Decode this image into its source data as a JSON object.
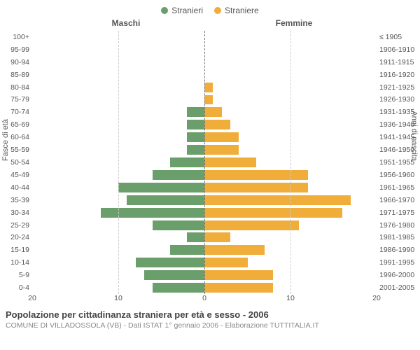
{
  "legend": {
    "male": {
      "label": "Stranieri",
      "color": "#6a9e6a"
    },
    "female": {
      "label": "Straniere",
      "color": "#f0ad3a"
    }
  },
  "headers": {
    "male": "Maschi",
    "female": "Femmine"
  },
  "ylabels": {
    "left": "Fasce di età",
    "right": "Anni di nascita"
  },
  "xaxis": {
    "max": 20,
    "ticks_left": [
      "20",
      "10"
    ],
    "center": "0",
    "ticks_right": [
      "10",
      "20"
    ]
  },
  "rows": [
    {
      "age": "100+",
      "birth": "≤ 1905",
      "m": 0,
      "f": 0
    },
    {
      "age": "95-99",
      "birth": "1906-1910",
      "m": 0,
      "f": 0
    },
    {
      "age": "90-94",
      "birth": "1911-1915",
      "m": 0,
      "f": 0
    },
    {
      "age": "85-89",
      "birth": "1916-1920",
      "m": 0,
      "f": 0
    },
    {
      "age": "80-84",
      "birth": "1921-1925",
      "m": 0,
      "f": 1
    },
    {
      "age": "75-79",
      "birth": "1926-1930",
      "m": 0,
      "f": 1
    },
    {
      "age": "70-74",
      "birth": "1931-1935",
      "m": 2,
      "f": 2
    },
    {
      "age": "65-69",
      "birth": "1936-1940",
      "m": 2,
      "f": 3
    },
    {
      "age": "60-64",
      "birth": "1941-1945",
      "m": 2,
      "f": 4
    },
    {
      "age": "55-59",
      "birth": "1946-1950",
      "m": 2,
      "f": 4
    },
    {
      "age": "50-54",
      "birth": "1951-1955",
      "m": 4,
      "f": 6
    },
    {
      "age": "45-49",
      "birth": "1956-1960",
      "m": 6,
      "f": 12
    },
    {
      "age": "40-44",
      "birth": "1961-1965",
      "m": 10,
      "f": 12
    },
    {
      "age": "35-39",
      "birth": "1966-1970",
      "m": 9,
      "f": 17
    },
    {
      "age": "30-34",
      "birth": "1971-1975",
      "m": 12,
      "f": 16
    },
    {
      "age": "25-29",
      "birth": "1976-1980",
      "m": 6,
      "f": 11
    },
    {
      "age": "20-24",
      "birth": "1981-1985",
      "m": 2,
      "f": 3
    },
    {
      "age": "15-19",
      "birth": "1986-1990",
      "m": 4,
      "f": 7
    },
    {
      "age": "10-14",
      "birth": "1991-1995",
      "m": 8,
      "f": 5
    },
    {
      "age": "5-9",
      "birth": "1996-2000",
      "m": 7,
      "f": 8
    },
    {
      "age": "0-4",
      "birth": "2001-2005",
      "m": 6,
      "f": 8
    }
  ],
  "grid": {
    "color": "#cccccc",
    "positions_pct": [
      50
    ]
  },
  "footer": {
    "title": "Popolazione per cittadinanza straniera per età e sesso - 2006",
    "subtitle": "COMUNE DI VILLADOSSOLA (VB) - Dati ISTAT 1° gennaio 2006 - Elaborazione TUTTITALIA.IT"
  },
  "style": {
    "bg": "#ffffff",
    "text": "#555555",
    "font_family": "Arial",
    "title_fontsize": 13,
    "label_fontsize": 11
  }
}
